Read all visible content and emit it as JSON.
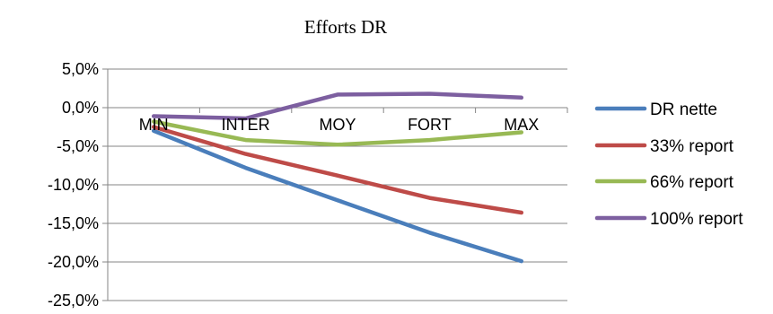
{
  "chart_data": {
    "type": "line",
    "title": "Efforts DR",
    "xlabel": "",
    "ylabel": "",
    "categories": [
      "MIN",
      "INTER",
      "MOY",
      "FORT",
      "MAX"
    ],
    "ylim": [
      -0.25,
      0.05
    ],
    "yticks": [
      0.05,
      0.0,
      -0.05,
      -0.1,
      -0.15,
      -0.2,
      -0.25
    ],
    "ytick_labels": [
      "5,0%",
      "0,0%",
      "-5,0%",
      "-10,0%",
      "-15,0%",
      "-20,0%",
      "-25,0%"
    ],
    "grid": true,
    "legend_position": "right",
    "series": [
      {
        "name": "DR nette",
        "color": "#4a7ebb",
        "values": [
          -0.03,
          -0.078,
          -0.12,
          -0.162,
          -0.199
        ]
      },
      {
        "name": "33% report",
        "color": "#be4b48",
        "values": [
          -0.025,
          -0.06,
          -0.088,
          -0.117,
          -0.136
        ]
      },
      {
        "name": "66% report",
        "color": "#98b954",
        "values": [
          -0.018,
          -0.042,
          -0.048,
          -0.042,
          -0.032
        ]
      },
      {
        "name": "100% report",
        "color": "#7d5fa0",
        "values": [
          -0.011,
          -0.014,
          0.017,
          0.018,
          0.013
        ]
      }
    ]
  }
}
